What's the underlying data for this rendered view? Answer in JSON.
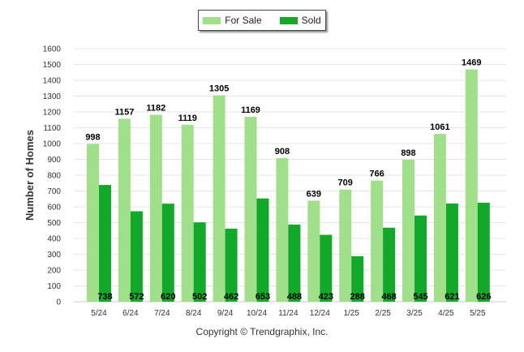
{
  "chart_data": {
    "type": "bar",
    "categories": [
      "5/24",
      "6/24",
      "7/24",
      "8/24",
      "9/24",
      "10/24",
      "11/24",
      "12/24",
      "1/25",
      "2/25",
      "3/25",
      "4/25",
      "5/25"
    ],
    "series": [
      {
        "name": "For Sale",
        "color": "#a0e08a",
        "values": [
          998,
          1157,
          1182,
          1119,
          1305,
          1169,
          908,
          639,
          709,
          766,
          898,
          1061,
          1469
        ]
      },
      {
        "name": "Sold",
        "color": "#12a82a",
        "values": [
          738,
          572,
          620,
          502,
          462,
          653,
          488,
          423,
          288,
          468,
          545,
          621,
          626
        ]
      }
    ],
    "title": "",
    "xlabel": "",
    "ylabel": "Number of Homes",
    "ylim": [
      0,
      1600
    ],
    "yticks": [
      0,
      100,
      200,
      300,
      400,
      500,
      600,
      700,
      800,
      900,
      1000,
      1100,
      1200,
      1300,
      1400,
      1500,
      1600
    ],
    "grid": true,
    "legend_position": "top-center"
  },
  "footer": {
    "copyright": "Copyright © Trendgraphix, Inc."
  }
}
